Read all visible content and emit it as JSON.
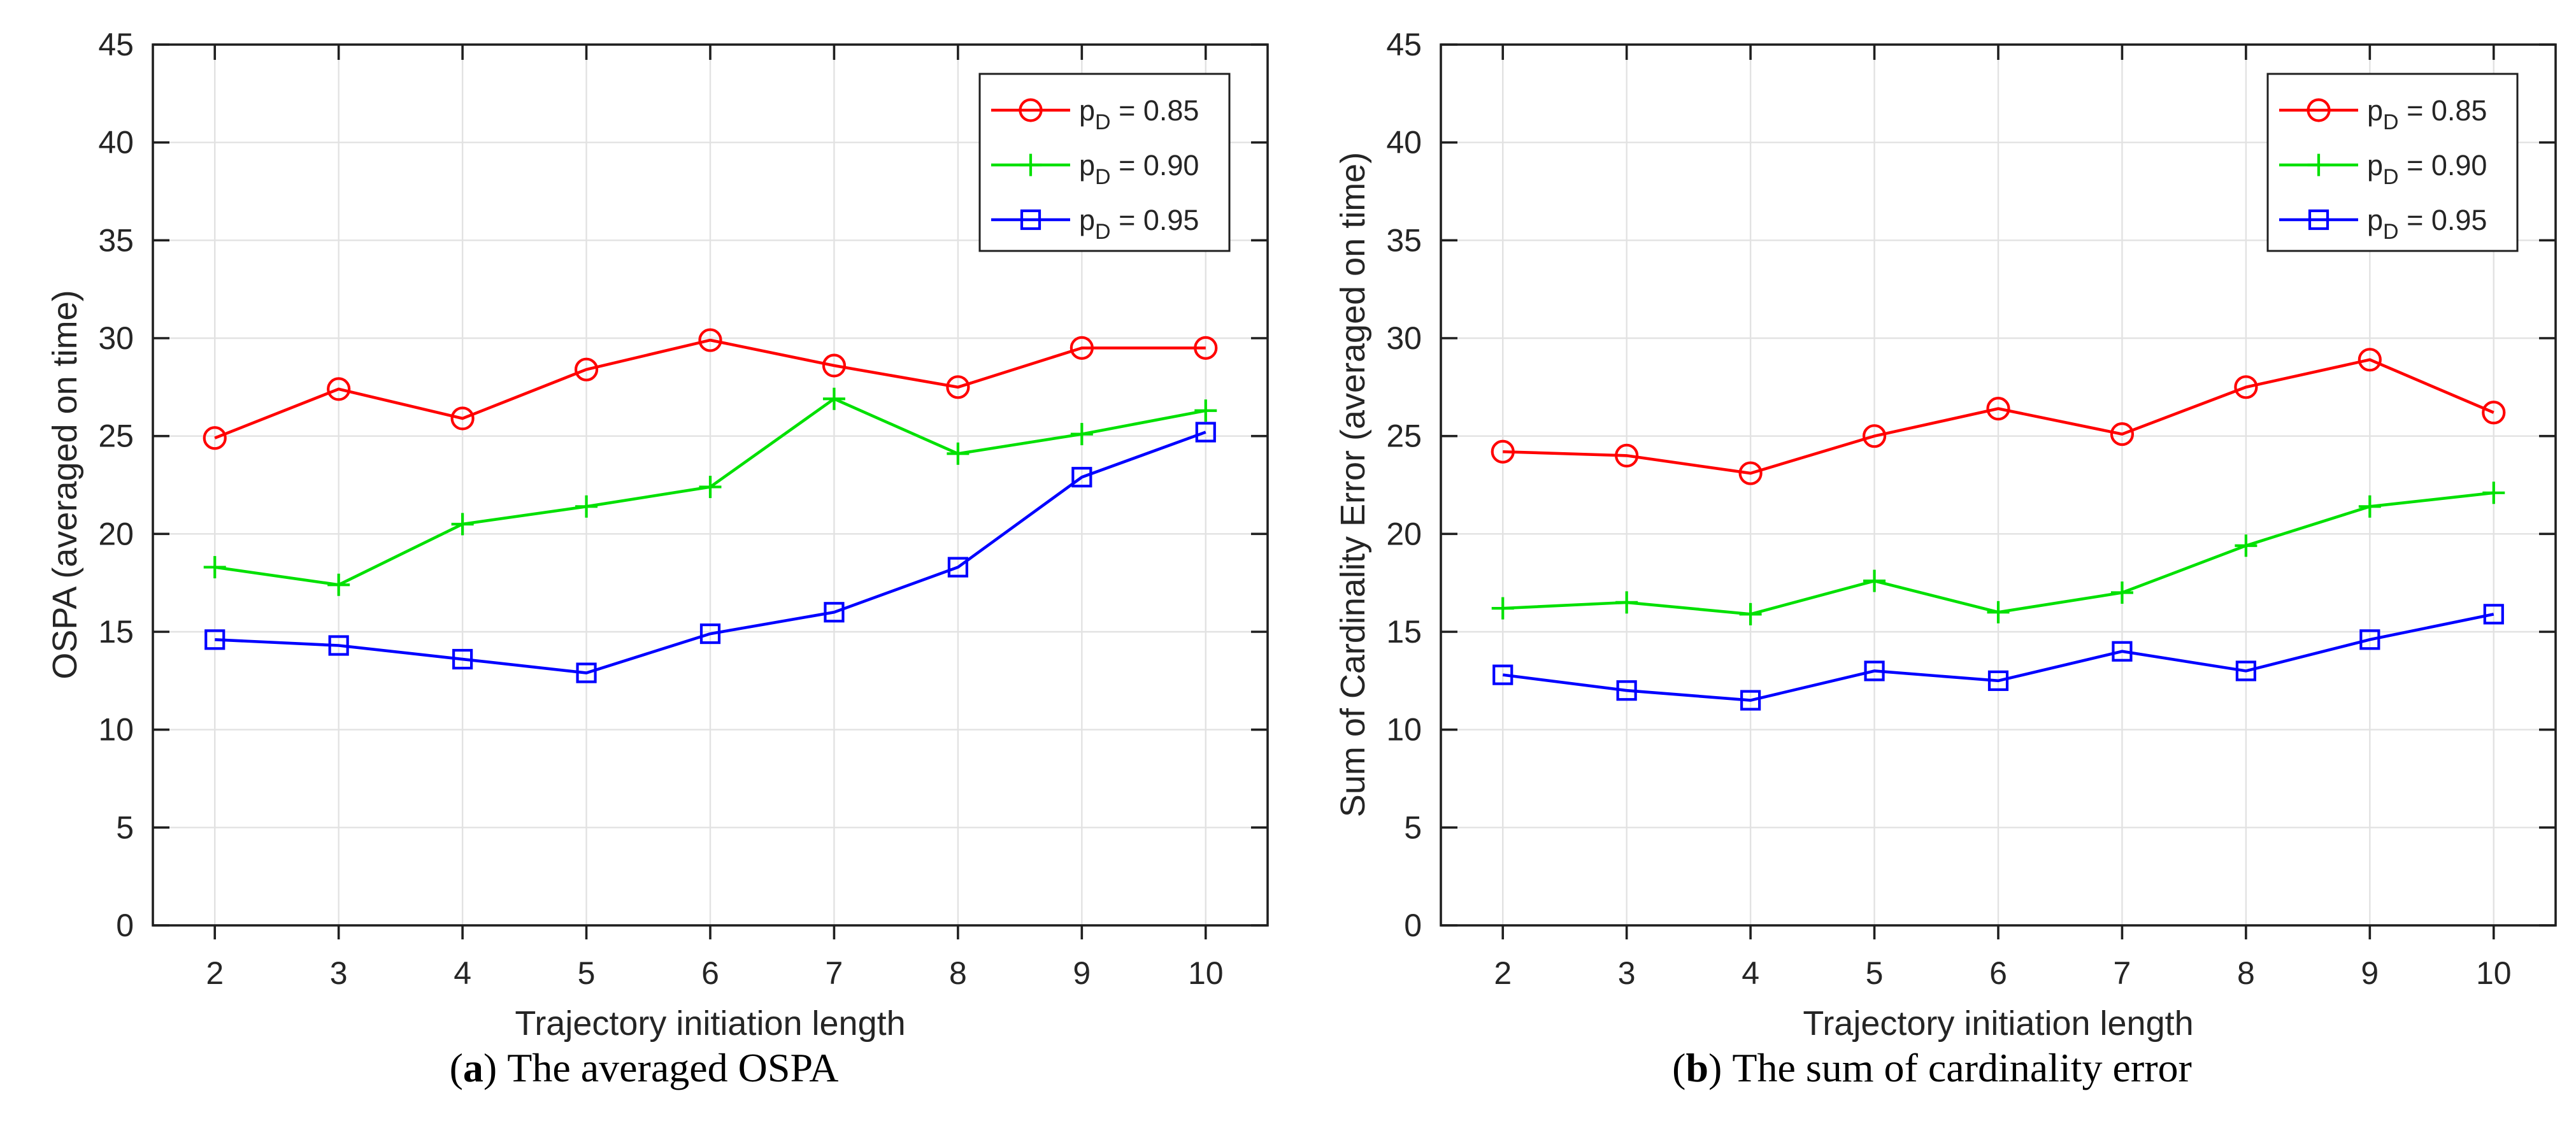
{
  "style": {
    "background": "#ffffff",
    "axis_color": "#1f1f1f",
    "grid_color": "#e2e2e2",
    "text_color": "#252525",
    "legend_background": "#ffffff",
    "legend_border_color": "#1f1f1f"
  },
  "chart_data": [
    {
      "type": "line",
      "title": "",
      "xlabel": "Trajectory initiation length",
      "ylabel": "OSPA (averaged on time)",
      "caption": {
        "open": "(",
        "letter": "a",
        "close": ")",
        "text": "The averaged OSPA"
      },
      "x": [
        2,
        3,
        4,
        5,
        6,
        7,
        8,
        9,
        10
      ],
      "xlim": [
        1.5,
        10.5
      ],
      "ylim": [
        0,
        45
      ],
      "xticks": [
        2,
        3,
        4,
        5,
        6,
        7,
        8,
        9,
        10
      ],
      "yticks": [
        0,
        5,
        10,
        15,
        20,
        25,
        30,
        35,
        40,
        45
      ],
      "grid": true,
      "legend_position": "top-right",
      "series": [
        {
          "id": "pd-085",
          "label": {
            "pre": "p",
            "sub": "D",
            "post": " = 0.85"
          },
          "color": "#ff0000",
          "marker": "circle",
          "values": [
            24.9,
            27.4,
            25.9,
            28.4,
            29.9,
            28.6,
            27.5,
            29.5,
            29.5
          ]
        },
        {
          "id": "pd-090",
          "label": {
            "pre": "p",
            "sub": "D",
            "post": " = 0.90"
          },
          "color": "#00e000",
          "marker": "plus",
          "values": [
            18.3,
            17.4,
            20.5,
            21.4,
            22.4,
            26.9,
            24.1,
            25.1,
            26.3
          ]
        },
        {
          "id": "pd-095",
          "label": {
            "pre": "p",
            "sub": "D",
            "post": " = 0.95"
          },
          "color": "#0000ff",
          "marker": "square",
          "values": [
            14.6,
            14.3,
            13.6,
            12.9,
            14.9,
            16.0,
            18.3,
            22.9,
            25.2
          ]
        }
      ]
    },
    {
      "type": "line",
      "title": "",
      "xlabel": "Trajectory initiation length",
      "ylabel": "Sum of Cardinality Error (averaged on time)",
      "caption": {
        "open": "(",
        "letter": "b",
        "close": ")",
        "text": "The sum of cardinality error"
      },
      "x": [
        2,
        3,
        4,
        5,
        6,
        7,
        8,
        9,
        10
      ],
      "xlim": [
        1.5,
        10.5
      ],
      "ylim": [
        0,
        45
      ],
      "xticks": [
        2,
        3,
        4,
        5,
        6,
        7,
        8,
        9,
        10
      ],
      "yticks": [
        0,
        5,
        10,
        15,
        20,
        25,
        30,
        35,
        40,
        45
      ],
      "grid": true,
      "legend_position": "top-right",
      "series": [
        {
          "id": "pd-085",
          "label": {
            "pre": "p",
            "sub": "D",
            "post": " = 0.85"
          },
          "color": "#ff0000",
          "marker": "circle",
          "values": [
            24.2,
            24.0,
            23.1,
            25.0,
            26.4,
            25.1,
            27.5,
            28.9,
            26.2
          ]
        },
        {
          "id": "pd-090",
          "label": {
            "pre": "p",
            "sub": "D",
            "post": " = 0.90"
          },
          "color": "#00e000",
          "marker": "plus",
          "values": [
            16.2,
            16.5,
            15.9,
            17.6,
            16.0,
            17.0,
            19.4,
            21.4,
            22.1
          ]
        },
        {
          "id": "pd-095",
          "label": {
            "pre": "p",
            "sub": "D",
            "post": " = 0.95"
          },
          "color": "#0000ff",
          "marker": "square",
          "values": [
            12.8,
            12.0,
            11.5,
            13.0,
            12.5,
            14.0,
            13.0,
            14.6,
            15.9
          ]
        }
      ]
    }
  ]
}
